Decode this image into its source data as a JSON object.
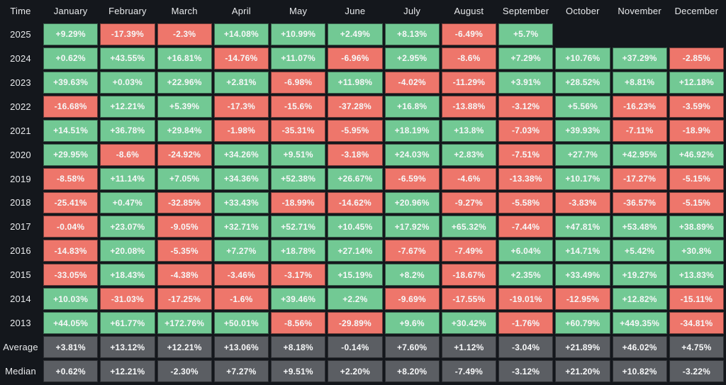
{
  "colors": {
    "background": "#14171c",
    "positive_green": "#72c994",
    "negative_red": "#ee766b",
    "summary_gray": "#5b5e63",
    "cell_text": "#f7f8f9",
    "header_text": "#e8eaec"
  },
  "table": {
    "time_label": "Time",
    "months": [
      "January",
      "February",
      "March",
      "April",
      "May",
      "June",
      "July",
      "August",
      "September",
      "October",
      "November",
      "December"
    ],
    "rows": [
      {
        "label": "2025",
        "type": "year",
        "display": [
          "+9.29%",
          "-17.39%",
          "-2.3%",
          "+14.08%",
          "+10.99%",
          "+2.49%",
          "+8.13%",
          "-6.49%",
          "+5.7%",
          "",
          "",
          ""
        ]
      },
      {
        "label": "2024",
        "type": "year",
        "display": [
          "+0.62%",
          "+43.55%",
          "+16.81%",
          "-14.76%",
          "+11.07%",
          "-6.96%",
          "+2.95%",
          "-8.6%",
          "+7.29%",
          "+10.76%",
          "+37.29%",
          "-2.85%"
        ]
      },
      {
        "label": "2023",
        "type": "year",
        "display": [
          "+39.63%",
          "+0.03%",
          "+22.96%",
          "+2.81%",
          "-6.98%",
          "+11.98%",
          "-4.02%",
          "-11.29%",
          "+3.91%",
          "+28.52%",
          "+8.81%",
          "+12.18%"
        ]
      },
      {
        "label": "2022",
        "type": "year",
        "display": [
          "-16.68%",
          "+12.21%",
          "+5.39%",
          "-17.3%",
          "-15.6%",
          "-37.28%",
          "+16.8%",
          "-13.88%",
          "-3.12%",
          "+5.56%",
          "-16.23%",
          "-3.59%"
        ]
      },
      {
        "label": "2021",
        "type": "year",
        "display": [
          "+14.51%",
          "+36.78%",
          "+29.84%",
          "-1.98%",
          "-35.31%",
          "-5.95%",
          "+18.19%",
          "+13.8%",
          "-7.03%",
          "+39.93%",
          "-7.11%",
          "-18.9%"
        ]
      },
      {
        "label": "2020",
        "type": "year",
        "display": [
          "+29.95%",
          "-8.6%",
          "-24.92%",
          "+34.26%",
          "+9.51%",
          "-3.18%",
          "+24.03%",
          "+2.83%",
          "-7.51%",
          "+27.7%",
          "+42.95%",
          "+46.92%"
        ]
      },
      {
        "label": "2019",
        "type": "year",
        "display": [
          "-8.58%",
          "+11.14%",
          "+7.05%",
          "+34.36%",
          "+52.38%",
          "+26.67%",
          "-6.59%",
          "-4.6%",
          "-13.38%",
          "+10.17%",
          "-17.27%",
          "-5.15%"
        ]
      },
      {
        "label": "2018",
        "type": "year",
        "display": [
          "-25.41%",
          "+0.47%",
          "-32.85%",
          "+33.43%",
          "-18.99%",
          "-14.62%",
          "+20.96%",
          "-9.27%",
          "-5.58%",
          "-3.83%",
          "-36.57%",
          "-5.15%"
        ]
      },
      {
        "label": "2017",
        "type": "year",
        "display": [
          "-0.04%",
          "+23.07%",
          "-9.05%",
          "+32.71%",
          "+52.71%",
          "+10.45%",
          "+17.92%",
          "+65.32%",
          "-7.44%",
          "+47.81%",
          "+53.48%",
          "+38.89%"
        ]
      },
      {
        "label": "2016",
        "type": "year",
        "display": [
          "-14.83%",
          "+20.08%",
          "-5.35%",
          "+7.27%",
          "+18.78%",
          "+27.14%",
          "-7.67%",
          "-7.49%",
          "+6.04%",
          "+14.71%",
          "+5.42%",
          "+30.8%"
        ]
      },
      {
        "label": "2015",
        "type": "year",
        "display": [
          "-33.05%",
          "+18.43%",
          "-4.38%",
          "-3.46%",
          "-3.17%",
          "+15.19%",
          "+8.2%",
          "-18.67%",
          "+2.35%",
          "+33.49%",
          "+19.27%",
          "+13.83%"
        ]
      },
      {
        "label": "2014",
        "type": "year",
        "display": [
          "+10.03%",
          "-31.03%",
          "-17.25%",
          "-1.6%",
          "+39.46%",
          "+2.2%",
          "-9.69%",
          "-17.55%",
          "-19.01%",
          "-12.95%",
          "+12.82%",
          "-15.11%"
        ]
      },
      {
        "label": "2013",
        "type": "year",
        "display": [
          "+44.05%",
          "+61.77%",
          "+172.76%",
          "+50.01%",
          "-8.56%",
          "-29.89%",
          "+9.6%",
          "+30.42%",
          "-1.76%",
          "+60.79%",
          "+449.35%",
          "-34.81%"
        ]
      },
      {
        "label": "Average",
        "type": "summary",
        "display": [
          "+3.81%",
          "+13.12%",
          "+12.21%",
          "+13.06%",
          "+8.18%",
          "-0.14%",
          "+7.60%",
          "+1.12%",
          "-3.04%",
          "+21.89%",
          "+46.02%",
          "+4.75%"
        ]
      },
      {
        "label": "Median",
        "type": "summary",
        "display": [
          "+0.62%",
          "+12.21%",
          "-2.30%",
          "+7.27%",
          "+9.51%",
          "+2.20%",
          "+8.20%",
          "-7.49%",
          "-3.12%",
          "+21.20%",
          "+10.82%",
          "-3.22%"
        ]
      }
    ]
  },
  "chart_data": {
    "type": "heatmap",
    "title": "",
    "xlabel": "",
    "ylabel": "Time",
    "x_categories": [
      "January",
      "February",
      "March",
      "April",
      "May",
      "June",
      "July",
      "August",
      "September",
      "October",
      "November",
      "December"
    ],
    "y_categories": [
      "2025",
      "2024",
      "2023",
      "2022",
      "2021",
      "2020",
      "2019",
      "2018",
      "2017",
      "2016",
      "2015",
      "2014",
      "2013",
      "Average",
      "Median"
    ],
    "values_percent": [
      [
        9.29,
        -17.39,
        -2.3,
        14.08,
        10.99,
        2.49,
        8.13,
        -6.49,
        5.7,
        null,
        null,
        null
      ],
      [
        0.62,
        43.55,
        16.81,
        -14.76,
        11.07,
        -6.96,
        2.95,
        -8.6,
        7.29,
        10.76,
        37.29,
        -2.85
      ],
      [
        39.63,
        0.03,
        22.96,
        2.81,
        -6.98,
        11.98,
        -4.02,
        -11.29,
        3.91,
        28.52,
        8.81,
        12.18
      ],
      [
        -16.68,
        12.21,
        5.39,
        -17.3,
        -15.6,
        -37.28,
        16.8,
        -13.88,
        -3.12,
        5.56,
        -16.23,
        -3.59
      ],
      [
        14.51,
        36.78,
        29.84,
        -1.98,
        -35.31,
        -5.95,
        18.19,
        13.8,
        -7.03,
        39.93,
        -7.11,
        -18.9
      ],
      [
        29.95,
        -8.6,
        -24.92,
        34.26,
        9.51,
        -3.18,
        24.03,
        2.83,
        -7.51,
        27.7,
        42.95,
        46.92
      ],
      [
        -8.58,
        11.14,
        7.05,
        34.36,
        52.38,
        26.67,
        -6.59,
        -4.6,
        -13.38,
        10.17,
        -17.27,
        -5.15
      ],
      [
        -25.41,
        0.47,
        -32.85,
        33.43,
        -18.99,
        -14.62,
        20.96,
        -9.27,
        -5.58,
        -3.83,
        -36.57,
        -5.15
      ],
      [
        -0.04,
        23.07,
        -9.05,
        32.71,
        52.71,
        10.45,
        17.92,
        65.32,
        -7.44,
        47.81,
        53.48,
        38.89
      ],
      [
        -14.83,
        20.08,
        -5.35,
        7.27,
        18.78,
        27.14,
        -7.67,
        -7.49,
        6.04,
        14.71,
        5.42,
        30.8
      ],
      [
        -33.05,
        18.43,
        -4.38,
        -3.46,
        -3.17,
        15.19,
        8.2,
        -18.67,
        2.35,
        33.49,
        19.27,
        13.83
      ],
      [
        10.03,
        -31.03,
        -17.25,
        -1.6,
        39.46,
        2.2,
        -9.69,
        -17.55,
        -19.01,
        -12.95,
        12.82,
        -15.11
      ],
      [
        44.05,
        61.77,
        172.76,
        50.01,
        -8.56,
        -29.89,
        9.6,
        30.42,
        -1.76,
        60.79,
        449.35,
        -34.81
      ],
      [
        3.81,
        13.12,
        12.21,
        13.06,
        8.18,
        -0.14,
        7.6,
        1.12,
        -3.04,
        21.89,
        46.02,
        4.75
      ],
      [
        0.62,
        12.21,
        -2.3,
        7.27,
        9.51,
        2.2,
        8.2,
        -7.49,
        -3.12,
        21.2,
        10.82,
        -3.22
      ]
    ],
    "legend": "none",
    "grid": "off",
    "color_rule": "green = positive return, red = negative return, gray = Average/Median summary rows, blank = no data (Oct-Dec 2025)"
  }
}
